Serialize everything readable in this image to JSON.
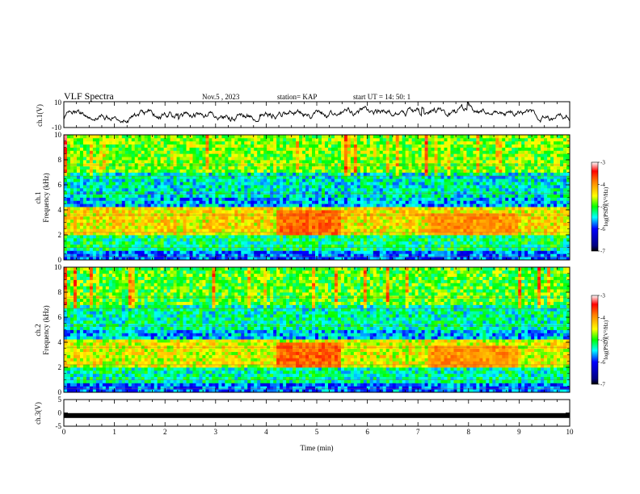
{
  "header": {
    "title": "VLF Spectra",
    "date": "Nov.5 , 2023",
    "station": "station= KAP",
    "start": "start UT = 14: 50: 1"
  },
  "colors": {
    "low": "#000080",
    "mid": "#00ff00",
    "high": "#ff0000",
    "top": "#ffffff",
    "trace": "#000000"
  },
  "chart_data": [
    {
      "type": "line",
      "name": "ch1-amplitude",
      "ylabel": "ch.1(V)",
      "ylim": [
        -10,
        10
      ],
      "yticks": [
        "10",
        "-10"
      ],
      "xlim": [
        0,
        10
      ],
      "note_values": "noisy waveform fluctuating roughly between -8 and +8 V"
    },
    {
      "type": "heatmap",
      "ylabel_top": "ch.1",
      "ylabel": "Frequency (kHz)",
      "ylim": [
        0,
        10
      ],
      "yticks": [
        "0",
        "2",
        "4",
        "6",
        "8",
        "10"
      ],
      "xlim": [
        0,
        10
      ],
      "colorbar": {
        "label": "log(PSD)(V²/Hz)",
        "range": [
          -7,
          -3
        ],
        "ticks": [
          "-3",
          "-4",
          "-5",
          "-6",
          "-7"
        ]
      },
      "bands": [
        {
          "f": [
            0,
            0.8
          ],
          "level": -5.8
        },
        {
          "f": [
            0.8,
            2.0
          ],
          "level": -5.2
        },
        {
          "f": [
            2.0,
            4.2
          ],
          "level": -4.4
        },
        {
          "f": [
            4.2,
            5.0
          ],
          "level": -5.6
        },
        {
          "f": [
            5.0,
            7.0
          ],
          "level": -5.4
        },
        {
          "f": [
            7.0,
            10.0
          ],
          "level": -4.8
        }
      ],
      "enhancement": {
        "t": [
          4.2,
          5.5
        ],
        "f": [
          2.0,
          4.0
        ],
        "level": -3.8
      }
    },
    {
      "type": "heatmap",
      "ylabel_top": "ch.2",
      "ylabel": "Frequency (kHz)",
      "ylim": [
        0,
        10
      ],
      "yticks": [
        "0",
        "2",
        "4",
        "6",
        "8",
        "10"
      ],
      "xlim": [
        0,
        10
      ],
      "colorbar": {
        "label": "log(PSD)(V²/Hz)",
        "range": [
          -7,
          -3
        ],
        "ticks": [
          "-3",
          "-4",
          "-5",
          "-6",
          "-7"
        ]
      },
      "bands": [
        {
          "f": [
            0,
            0.8
          ],
          "level": -5.8
        },
        {
          "f": [
            0.8,
            2.0
          ],
          "level": -5.3
        },
        {
          "f": [
            2.0,
            4.2
          ],
          "level": -4.5
        },
        {
          "f": [
            4.2,
            5.0
          ],
          "level": -5.6
        },
        {
          "f": [
            5.0,
            7.0
          ],
          "level": -5.3
        },
        {
          "f": [
            7.0,
            10.0
          ],
          "level": -4.9
        }
      ],
      "enhancement": {
        "t": [
          4.2,
          5.5
        ],
        "f": [
          2.0,
          4.0
        ],
        "level": -3.8
      }
    },
    {
      "type": "line",
      "name": "ch3-amplitude",
      "ylabel": "ch.3(V)",
      "ylim": [
        -5,
        5
      ],
      "yticks": [
        "5",
        "0",
        "-5"
      ],
      "values_const": -1,
      "xlabel": "Time (min)",
      "xlim": [
        0,
        10
      ],
      "xticks": [
        "0",
        "1",
        "2",
        "3",
        "4",
        "5",
        "6",
        "7",
        "8",
        "9",
        "10"
      ]
    }
  ]
}
